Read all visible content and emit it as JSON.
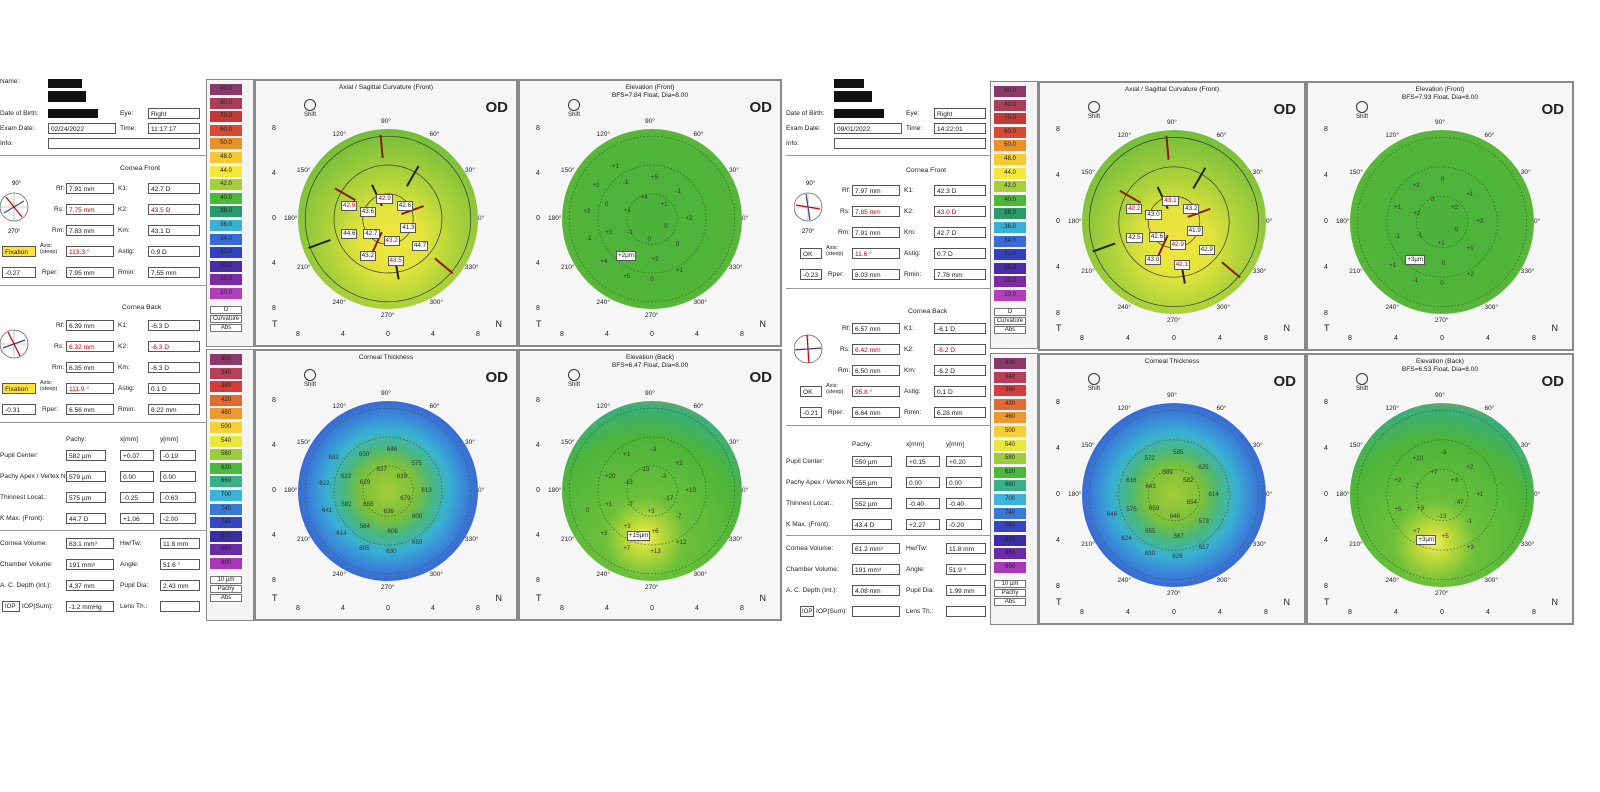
{
  "scale": {
    "curvature_steps": [
      "90.0",
      "80.0",
      "70.0",
      "60.0",
      "50.0",
      "48.0",
      "44.0",
      "42.0",
      "40.0",
      "38.0",
      "36.0",
      "34.0",
      "32.0",
      "30.0",
      "20.0",
      "10.0"
    ],
    "curvature_footer": [
      "D",
      "Curvature",
      "Abs"
    ],
    "curvature_colors": [
      "#8a3a6a",
      "#a84058",
      "#c03a3a",
      "#d84a34",
      "#e8902a",
      "#f4c832",
      "#f4e83a",
      "#a6d03a",
      "#4ab83a",
      "#2a9a6a",
      "#3ab0d4",
      "#3a6ad8",
      "#3440c0",
      "#4a2ca6",
      "#7a2ca0",
      "#b040b8"
    ],
    "pachy_steps": [
      "300",
      "340",
      "380",
      "420",
      "460",
      "500",
      "540",
      "580",
      "620",
      "660",
      "700",
      "740",
      "780",
      "820",
      "860",
      "900"
    ],
    "pachy_footer": [
      "10 µm",
      "Pachy",
      "Abs"
    ],
    "pachy_colors": [
      "#8a3a6a",
      "#b4405a",
      "#d43c3c",
      "#e06a34",
      "#ec9a2e",
      "#f4d036",
      "#e8e83a",
      "#9ccc3a",
      "#4ab83a",
      "#3ab08a",
      "#3ab4d8",
      "#3a78d8",
      "#3446c4",
      "#3a2ea8",
      "#6a2ca4",
      "#a838b8"
    ]
  },
  "angles": {
    "top": "90°",
    "d120": "120°",
    "d60": "60°",
    "d150": "150°",
    "d30": "30°",
    "d180": "180°",
    "d0": "0°",
    "d210": "210°",
    "d330": "330°",
    "d240": "240°",
    "d300": "300°",
    "bottom": "270°"
  },
  "axis_ticks": [
    "8",
    "4",
    "0",
    "4",
    "8"
  ],
  "panel_common": {
    "od": "OD",
    "shift": "Shift",
    "t": "T",
    "n": "N"
  },
  "exams": [
    {
      "id": "a",
      "patient": {
        "name_label": "Name:",
        "dob_label": "Date of Birth:",
        "exam_date_label": "Exam Date:",
        "info_label": "Info:",
        "eye_label": "Eye:",
        "eye": "Right",
        "date": "02/24/2022",
        "time_label": "Time:",
        "time": "11:17:17"
      },
      "front": {
        "title": "Cornea Front",
        "rf_label": "Rf:",
        "rf": "7.91 mm",
        "k1_label": "K1:",
        "k1": "42.7 D",
        "rs_label": "Rs:",
        "rs": "7.75 mm",
        "k2_label": "K2:",
        "k2": "43.5 D",
        "rm_label": "Rm:",
        "rm": "7.83 mm",
        "km_label": "Km:",
        "km": "43.1 D",
        "status": "Fixation",
        "axis_label": "Axis: (steep)",
        "axis": "113.3 °",
        "astig_label": "Astig:",
        "astig": "0.9 D",
        "q": "-0.27",
        "rper_label": "Rper:",
        "rper": "7.95 mm",
        "rmin_label": "Rmin:",
        "rmin": "7.55 mm"
      },
      "back": {
        "title": "Cornea Back",
        "rf": "6.39 mm",
        "k1": "-6.3 D",
        "rs": "6.32 mm",
        "k2": "-6.3 D",
        "rm": "6.35 mm",
        "km": "-6.3 D",
        "status": "Fixation",
        "axis": "111.9 °",
        "astig": "0.1 D",
        "q": "-0.31",
        "rper": "6.56 mm",
        "rmin": "6.22 mm"
      },
      "pachy": {
        "header_pachy": "Pachy:",
        "header_x": "x[mm]",
        "header_y": "y[mm]",
        "rows": [
          {
            "label": "Pupil Center:",
            "pachy": "582 µm",
            "x": "+0.07",
            "y": "-0.19"
          },
          {
            "label": "Pachy Apex / Vertex N.:",
            "pachy": "579 µm",
            "x": "0.00",
            "y": "0.00"
          },
          {
            "label": "Thinnest Locat.:",
            "pachy": "575 µm",
            "x": "-0.25",
            "y": "-0.63"
          },
          {
            "label": "K Max. (Front):",
            "pachy": "44.7 D",
            "x": "+1.06",
            "y": "-2.00"
          }
        ]
      },
      "metrics": {
        "cornea_volume_label": "Cornea Volume:",
        "cornea_volume": "63.1 mm³",
        "hwtw_label": "Hw/Tw:",
        "hwtw": "11.8 mm",
        "chamber_volume_label": "Chamber Volume:",
        "chamber_volume": "191 mm³",
        "angle_label": "Angle:",
        "angle": "51.6 °",
        "depth_label": "A. C. Depth (Int.):",
        "depth": "4.37 mm",
        "pupil_label": "Pupil Dia:",
        "pupil": "2.43 mm",
        "iop_btn": "IOP",
        "iop_label": "IOP(Sum):",
        "iop": "-1.2 mmHg",
        "lens_label": "Lens Th.:",
        "lens": ""
      },
      "panels": {
        "axial": {
          "title": "Axial / Sagittal Curvature (Front)",
          "labels": [
            "41.3",
            "43.2",
            "42.7",
            "43.6",
            "42.9",
            "42.6",
            "44.7",
            "43.5",
            "43.2",
            "44.6",
            "42.9"
          ]
        },
        "elev_front": {
          "title": "Elevation (Front)",
          "subtitle": "BFS=7.84 Float, Dia=8.00",
          "marker": "+2µm",
          "values": [
            "0",
            "0",
            "-1",
            "+1",
            "+4",
            "+1",
            "0",
            "+2",
            "+1",
            "+3",
            "0",
            "-1",
            "+5",
            "-1",
            "+2",
            "+1",
            "0",
            "+5",
            "+4",
            "-1",
            "+2",
            "+1",
            "+1"
          ]
        },
        "thickness": {
          "title": "Corneal Thickness",
          "values": [
            "679",
            "636",
            "658",
            "629",
            "637",
            "639",
            "600",
            "606",
            "584",
            "582",
            "622",
            "650",
            "646",
            "575",
            "613",
            "659",
            "630",
            "605",
            "614",
            "641",
            "622",
            "632"
          ]
        },
        "elev_back": {
          "title": "Elevation (Back)",
          "subtitle": "BFS=6.47 Float, Dia=8.00",
          "marker": "+15µm",
          "values": [
            "-17",
            "+3",
            "-7",
            "-13",
            "-13",
            "-3",
            "-7",
            "+6",
            "+3",
            "+1",
            "+20",
            "+1",
            "-3",
            "+2",
            "+10",
            "+12",
            "+13",
            "+7",
            "+3",
            "0"
          ]
        }
      }
    },
    {
      "id": "b",
      "patient": {
        "name_label": "Name:",
        "dob_label": "Date of Birth:",
        "exam_date_label": "Exam Date:",
        "info_label": "Info:",
        "eye_label": "Eye:",
        "eye": "Right",
        "date": "09/01/2022",
        "time_label": "Time:",
        "time": "14:22:01"
      },
      "front": {
        "title": "Cornea Front",
        "rf_label": "Rf:",
        "rf": "7.97 mm",
        "k1_label": "K1:",
        "k1": "42.3 D",
        "rs_label": "Rs:",
        "rs": "7.85 mm",
        "k2_label": "K2:",
        "k2": "43.0 D",
        "rm_label": "Rm:",
        "rm": "7.91 mm",
        "km_label": "Km:",
        "km": "42.7 D",
        "status": "OK",
        "axis_label": "Axis: (steep)",
        "axis": "11.6 °",
        "astig_label": "Astig:",
        "astig": "0.7 D",
        "q": "-0.23",
        "rper_label": "Rper:",
        "rper": "8.03 mm",
        "rmin_label": "Rmin:",
        "rmin": "7.78 mm"
      },
      "back": {
        "title": "Cornea Back",
        "rf": "6.57 mm",
        "k1": "-6.1 D",
        "rs": "6.42 mm",
        "k2": "-6.2 D",
        "rm": "6.50 mm",
        "km": "-6.2 D",
        "status": "OK",
        "axis": "95.8 °",
        "astig": "0.1 D",
        "q": "-0.21",
        "rper": "6.64 mm",
        "rmin": "6.28 mm"
      },
      "pachy": {
        "header_pachy": "Pachy:",
        "header_x": "x[mm]",
        "header_y": "y[mm]",
        "rows": [
          {
            "label": "Pupil Center:",
            "pachy": "550 µm",
            "x": "+0.15",
            "y": "+0.20"
          },
          {
            "label": "Pachy Apex / Vertex N.:",
            "pachy": "555 µm",
            "x": "0.00",
            "y": "0.00"
          },
          {
            "label": "Thinnest Locat.:",
            "pachy": "552 µm",
            "x": "-0.40",
            "y": "-0.40"
          },
          {
            "label": "K Max. (Front):",
            "pachy": "43.4 D",
            "x": "+2.27",
            "y": "-0.20"
          }
        ]
      },
      "metrics": {
        "cornea_volume_label": "Cornea Volume:",
        "cornea_volume": "61.2 mm³",
        "hwtw_label": "Hw/Tw:",
        "hwtw": "11.8 mm",
        "chamber_volume_label": "Chamber Volume:",
        "chamber_volume": "191 mm³",
        "angle_label": "Angle:",
        "angle": "51.9 °",
        "depth_label": "A. C. Depth (Int.):",
        "depth": "4.08 mm",
        "pupil_label": "Pupil Dia:",
        "pupil": "1.99 mm",
        "iop_btn": "IOP",
        "iop_label": "IOP(Sum):",
        "iop": "",
        "lens_label": "Lens Th.:",
        "lens": ""
      },
      "panels": {
        "axial": {
          "title": "Axial / Sagittal Curvature (Front)",
          "labels": [
            "41.9",
            "42.9",
            "42.6",
            "43.0",
            "43.1",
            "43.2",
            "42.9",
            "42.1",
            "43.0",
            "42.5",
            "42.2"
          ]
        },
        "elev_front": {
          "title": "Elevation (Front)",
          "subtitle": "BFS=7.93 Float, Dia=8.00",
          "marker": "+3µm",
          "values": [
            "0",
            "+1",
            "-1",
            "+2",
            "0",
            "+2",
            "+1",
            "0",
            "+3",
            "-1",
            "+1",
            "+2",
            "0",
            "+1",
            "+3",
            "+2",
            "0",
            "-1",
            "+1"
          ]
        },
        "thickness": {
          "title": "Corneal Thickness",
          "values": [
            "654",
            "646",
            "659",
            "643",
            "589",
            "582",
            "573",
            "567",
            "555",
            "575",
            "616",
            "572",
            "585",
            "625",
            "614",
            "617",
            "626",
            "630",
            "624",
            "646"
          ]
        },
        "elev_back": {
          "title": "Elevation (Back)",
          "subtitle": "BFS=6.53 Float, Dia=8.00",
          "marker": "+3µm",
          "values": [
            "-47",
            "-13",
            "+3",
            "-7",
            "+7",
            "+3",
            "-1",
            "+5",
            "+7",
            "+5",
            "+2",
            "+10",
            "-3",
            "+2",
            "+1",
            "+3"
          ]
        }
      }
    }
  ]
}
